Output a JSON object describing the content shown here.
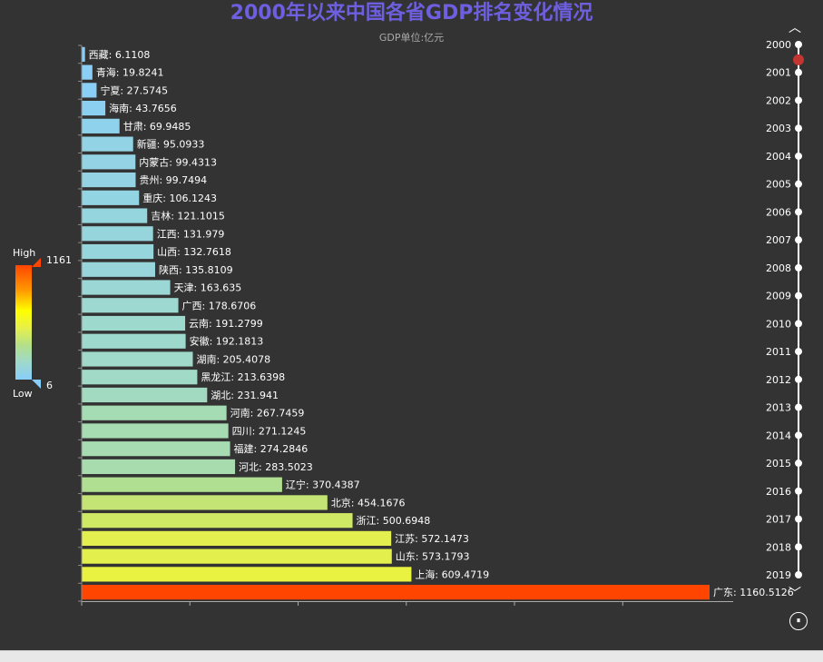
{
  "title": "2000年以来中国各省GDP排名变化情况",
  "subtitle": "GDP单位:亿元",
  "visual_map": {
    "high_label": "High",
    "low_label": "Low",
    "max_text": "1161",
    "min_text": "6",
    "colors": [
      "#87cefa",
      "#9fd9cc",
      "#b3e08a",
      "#e6f04a",
      "#ffff00",
      "#ff9900",
      "#ff4500"
    ]
  },
  "timeline": {
    "years": [
      "2000",
      "2001",
      "2002",
      "2003",
      "2004",
      "2005",
      "2006",
      "2007",
      "2008",
      "2009",
      "2010",
      "2011",
      "2012",
      "2013",
      "2014",
      "2015",
      "2016",
      "2017",
      "2018",
      "2019"
    ],
    "current_index": 0,
    "play_glyph": "⏸",
    "prev_glyph": "︿",
    "next_glyph": "﹀",
    "active_color": "#c23531"
  },
  "chart_data": {
    "type": "bar",
    "orientation": "horizontal",
    "title": "2000年以来中国各省GDP排名变化情况",
    "subtitle": "GDP单位:亿元",
    "xlim": [
      0,
      1160.5126
    ],
    "categories": [
      "西藏",
      "青海",
      "宁夏",
      "海南",
      "甘肃",
      "新疆",
      "内蒙古",
      "贵州",
      "重庆",
      "吉林",
      "江西",
      "山西",
      "陕西",
      "天津",
      "广西",
      "云南",
      "安徽",
      "湖南",
      "黑龙江",
      "湖北",
      "河南",
      "四川",
      "福建",
      "河北",
      "辽宁",
      "北京",
      "浙江",
      "江苏",
      "山东",
      "上海",
      "广东"
    ],
    "values": [
      6.1108,
      19.8241,
      27.5745,
      43.7656,
      69.9485,
      95.0933,
      99.4313,
      99.7494,
      106.1243,
      121.1015,
      131.979,
      132.7618,
      135.8109,
      163.635,
      178.6706,
      191.2799,
      192.1813,
      205.4078,
      213.6398,
      231.941,
      267.7459,
      271.1245,
      274.2846,
      283.5023,
      370.4387,
      454.1676,
      500.6948,
      572.1473,
      573.1793,
      609.4719,
      1160.5126
    ]
  }
}
